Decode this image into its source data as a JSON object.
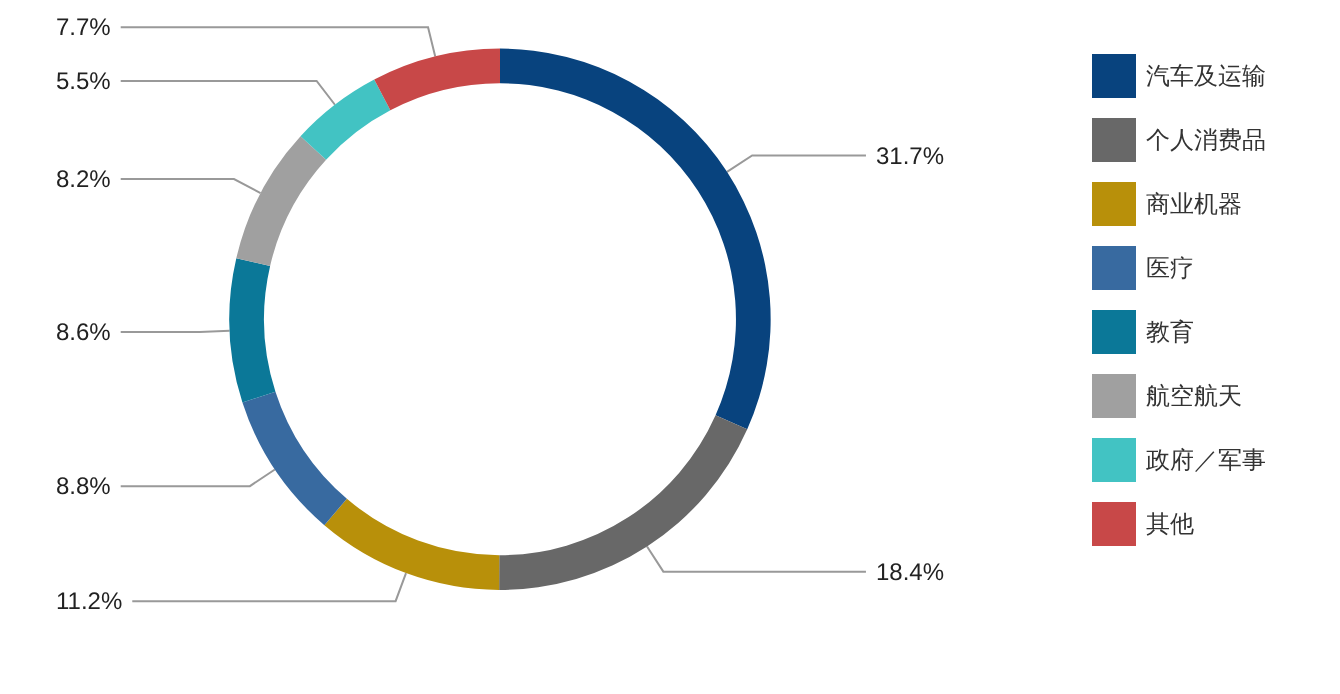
{
  "chart_data": {
    "type": "donut",
    "categories": [
      "汽车及运输",
      "个人消费品",
      "商业机器",
      "医疗",
      "教育",
      "航空航天",
      "政府／军事",
      "其他"
    ],
    "values": [
      31.7,
      18.4,
      11.2,
      8.8,
      8.6,
      8.2,
      5.5,
      7.7
    ],
    "colors": [
      "#08437e",
      "#686868",
      "#b8900a",
      "#386aa0",
      "#0b7898",
      "#a0a0a0",
      "#42c3c3",
      "#c84848"
    ],
    "value_labels": [
      "31.7%",
      "18.4%",
      "11.2%",
      "8.8%",
      "8.6%",
      "8.2%",
      "5.5%",
      "7.7%"
    ],
    "legend": "right"
  }
}
